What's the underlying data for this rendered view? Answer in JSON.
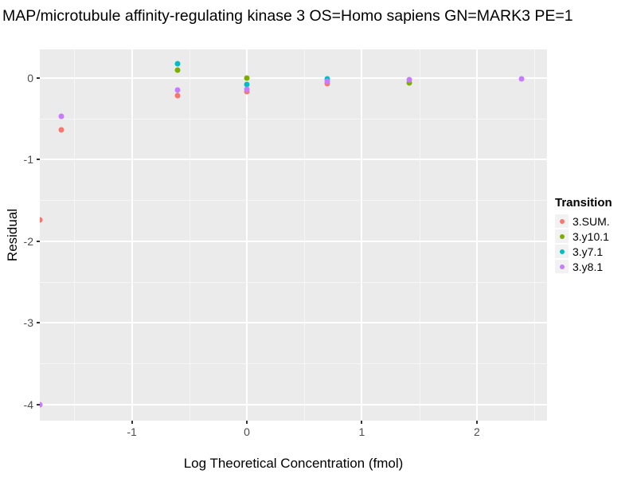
{
  "colors": {
    "panel_bg": "#EBEBEB",
    "grid": "#FFFFFF",
    "axis_text": "#4D4D4D",
    "tick_mark": "#333333",
    "legend_key_bg": "#F2F2F2",
    "title_text": "#000000"
  },
  "chart_data": {
    "type": "scatter",
    "title": "MAP/microtubule affinity-regulating kinase 3 OS=Homo sapiens GN=MARK3 PE=1",
    "xlabel": "Log Theoretical Concentration (fmol)",
    "ylabel": "Residual",
    "legend_title": "Transition",
    "legend_position": "right",
    "grid": true,
    "xlim": [
      -1.8,
      2.61
    ],
    "ylim": [
      -4.2,
      0.35
    ],
    "x_ticks": {
      "values": [
        -1,
        0,
        1,
        2
      ],
      "labels": [
        "-1",
        "0",
        "1",
        "2"
      ]
    },
    "y_ticks": {
      "values": [
        0,
        -1,
        -2,
        -3,
        -4
      ],
      "labels": [
        "0",
        "-1",
        "-2",
        "-3",
        "-4"
      ]
    },
    "x_minor": [
      -1.5,
      -0.5,
      0.5,
      1.5,
      2.5
    ],
    "y_minor": [
      -0.5,
      -1.5,
      -2.5,
      -3.5
    ],
    "series": [
      {
        "name": "3.SUM.",
        "color": "#F8766D",
        "points": [
          [
            -1.8,
            -1.74
          ],
          [
            -1.61,
            -0.64
          ],
          [
            -0.6,
            -0.22
          ],
          [
            0.0,
            -0.17
          ],
          [
            0.7,
            -0.07
          ]
        ]
      },
      {
        "name": "3.y10.1",
        "color": "#7CAE00",
        "points": [
          [
            -0.6,
            0.1
          ],
          [
            0.0,
            0.0
          ],
          [
            1.41,
            -0.06
          ]
        ]
      },
      {
        "name": "3.y7.1",
        "color": "#00BFC4",
        "points": [
          [
            -0.6,
            0.17
          ],
          [
            0.0,
            -0.08
          ],
          [
            0.7,
            -0.01
          ]
        ]
      },
      {
        "name": "3.y8.1",
        "color": "#C77CFF",
        "points": [
          [
            -1.8,
            -4.0
          ],
          [
            -1.61,
            -0.47
          ],
          [
            -0.6,
            -0.15
          ],
          [
            0.0,
            -0.14
          ],
          [
            0.7,
            -0.04
          ],
          [
            1.41,
            -0.02
          ],
          [
            2.39,
            -0.01
          ]
        ]
      }
    ]
  }
}
